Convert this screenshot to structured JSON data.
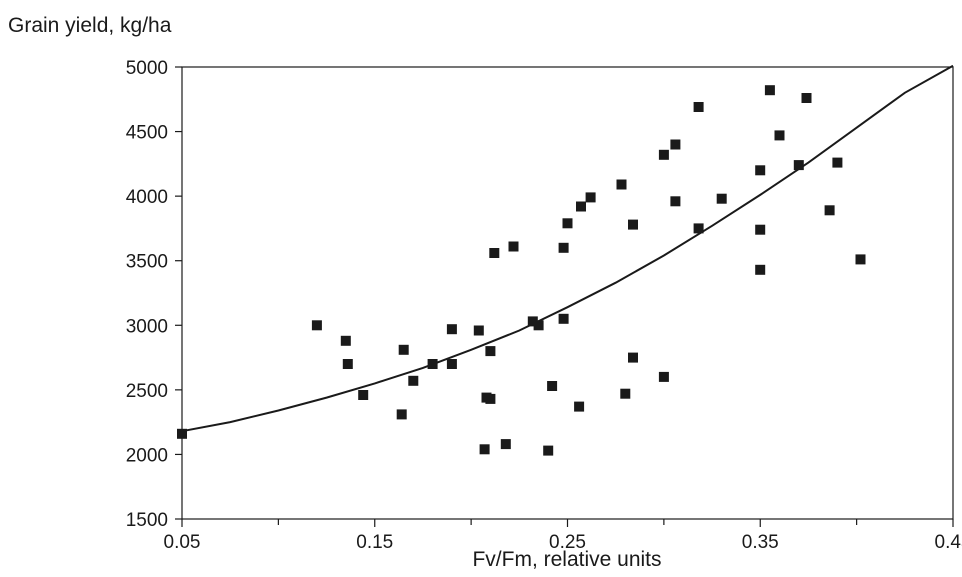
{
  "chart_data": {
    "type": "scatter",
    "title": "",
    "ylabel": "Grain yield, kg/ha",
    "xlabel": "Fv/Fm, relative units",
    "xlim": [
      0.05,
      0.45
    ],
    "ylim": [
      1500,
      5000
    ],
    "x_ticks": [
      0.05,
      0.15,
      0.25,
      0.35,
      0.45
    ],
    "y_ticks": [
      1500,
      2000,
      2500,
      3000,
      3500,
      4000,
      4500,
      5000
    ],
    "grid": false,
    "legend": "none",
    "colors": {
      "points": "#1a1a1a",
      "curve": "#1a1a1a",
      "axes": "#1a1a1a"
    },
    "series": [
      {
        "type": "scatter",
        "points": [
          [
            0.05,
            2160
          ],
          [
            0.12,
            3000
          ],
          [
            0.135,
            2880
          ],
          [
            0.136,
            2700
          ],
          [
            0.144,
            2460
          ],
          [
            0.164,
            2310
          ],
          [
            0.165,
            2810
          ],
          [
            0.17,
            2570
          ],
          [
            0.18,
            2700
          ],
          [
            0.19,
            2970
          ],
          [
            0.19,
            2700
          ],
          [
            0.204,
            2960
          ],
          [
            0.208,
            2440
          ],
          [
            0.21,
            2430
          ],
          [
            0.21,
            2800
          ],
          [
            0.207,
            2040
          ],
          [
            0.212,
            3560
          ],
          [
            0.218,
            2080
          ],
          [
            0.222,
            3610
          ],
          [
            0.232,
            3030
          ],
          [
            0.235,
            3000
          ],
          [
            0.24,
            2030
          ],
          [
            0.242,
            2530
          ],
          [
            0.248,
            3050
          ],
          [
            0.248,
            3600
          ],
          [
            0.25,
            3790
          ],
          [
            0.256,
            2370
          ],
          [
            0.257,
            3920
          ],
          [
            0.262,
            3990
          ],
          [
            0.278,
            4090
          ],
          [
            0.28,
            2470
          ],
          [
            0.284,
            3780
          ],
          [
            0.284,
            2750
          ],
          [
            0.3,
            4320
          ],
          [
            0.3,
            2600
          ],
          [
            0.306,
            4400
          ],
          [
            0.306,
            3960
          ],
          [
            0.318,
            4690
          ],
          [
            0.318,
            3750
          ],
          [
            0.33,
            3980
          ],
          [
            0.35,
            4200
          ],
          [
            0.35,
            3740
          ],
          [
            0.35,
            3430
          ],
          [
            0.355,
            4820
          ],
          [
            0.36,
            4470
          ],
          [
            0.37,
            4240
          ],
          [
            0.374,
            4760
          ],
          [
            0.386,
            3890
          ],
          [
            0.39,
            4260
          ],
          [
            0.402,
            3510
          ]
        ]
      },
      {
        "type": "line",
        "x": [
          0.05,
          0.075,
          0.1,
          0.125,
          0.15,
          0.175,
          0.2,
          0.225,
          0.25,
          0.275,
          0.3,
          0.325,
          0.35,
          0.375,
          0.4,
          0.425,
          0.45
        ],
        "values": [
          2180,
          2250,
          2340,
          2440,
          2550,
          2670,
          2810,
          2960,
          3140,
          3330,
          3540,
          3770,
          4010,
          4260,
          4530,
          4800,
          5010
        ]
      }
    ]
  }
}
